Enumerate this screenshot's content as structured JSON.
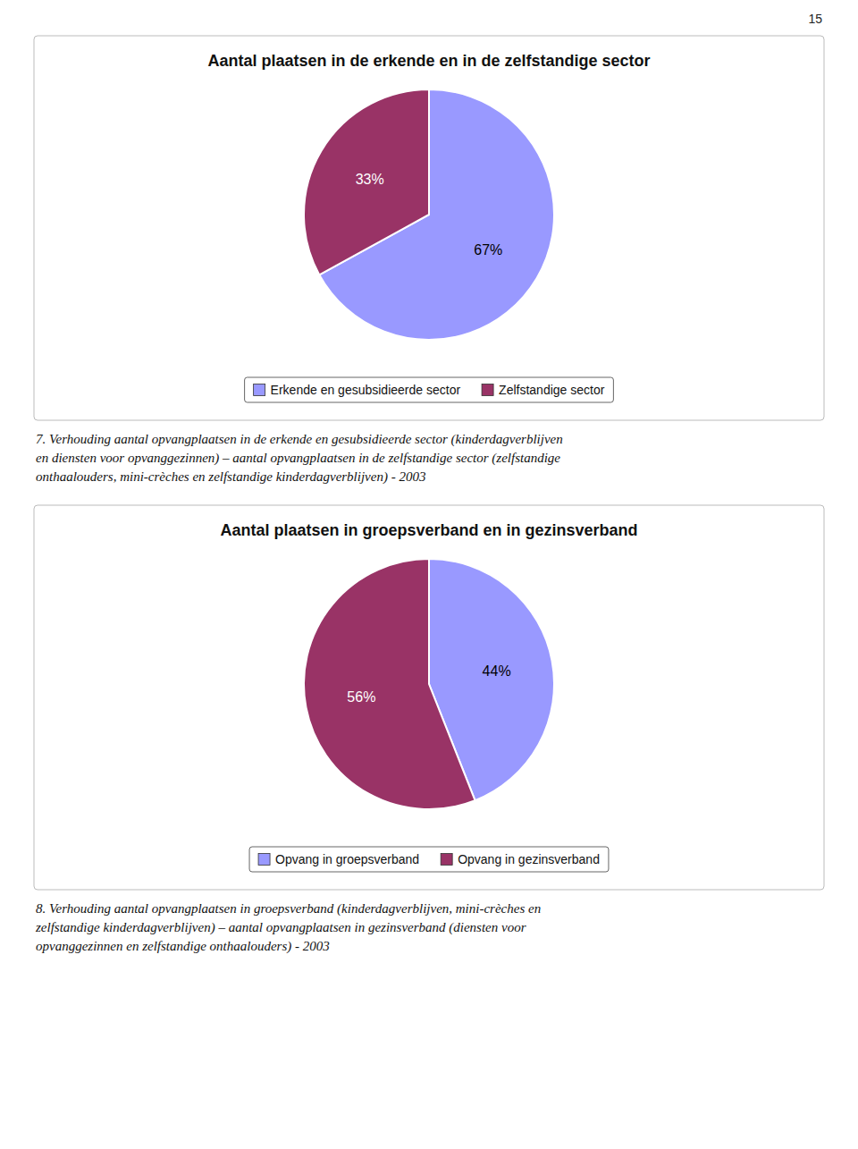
{
  "page_number": "15",
  "chart_data": [
    {
      "type": "pie",
      "title": "Aantal plaatsen in de erkende en in de zelfstandige sector",
      "categories": [
        "Erkende en gesubsidieerde sector",
        "Zelfstandige sector"
      ],
      "values": [
        67,
        33
      ],
      "value_labels": [
        "67%",
        "33%"
      ],
      "colors": [
        "#9999FF",
        "#993366"
      ],
      "data_labels": true,
      "legend": "bottom",
      "annotations": [
        "7. Verhouding aantal opvangplaatsen in de erkende en gesubsidieerde sector (kinderdagverblijven\nen diensten voor opvanggezinnen) – aantal opvangplaatsen in de zelfstandige sector (zelfstandige\nonthaalouders, mini-crèches en zelfstandige kinderdagverblijven) - 2003"
      ]
    },
    {
      "type": "pie",
      "title": "Aantal plaatsen in groepsverband en in gezinsverband",
      "categories": [
        "Opvang in groepsverband",
        "Opvang in gezinsverband"
      ],
      "values": [
        44,
        56
      ],
      "value_labels": [
        "44%",
        "56%"
      ],
      "colors": [
        "#9999FF",
        "#993366"
      ],
      "data_labels": true,
      "legend": "bottom",
      "annotations": [
        "8. Verhouding aantal opvangplaatsen in groepsverband (kinderdagverblijven, mini-crèches en\nzelfstandige kinderdagverblijven) – aantal opvangplaatsen in gezinsverband (diensten voor\nopvanggezinnen en zelfstandige onthaalouders) - 2003"
      ]
    }
  ]
}
